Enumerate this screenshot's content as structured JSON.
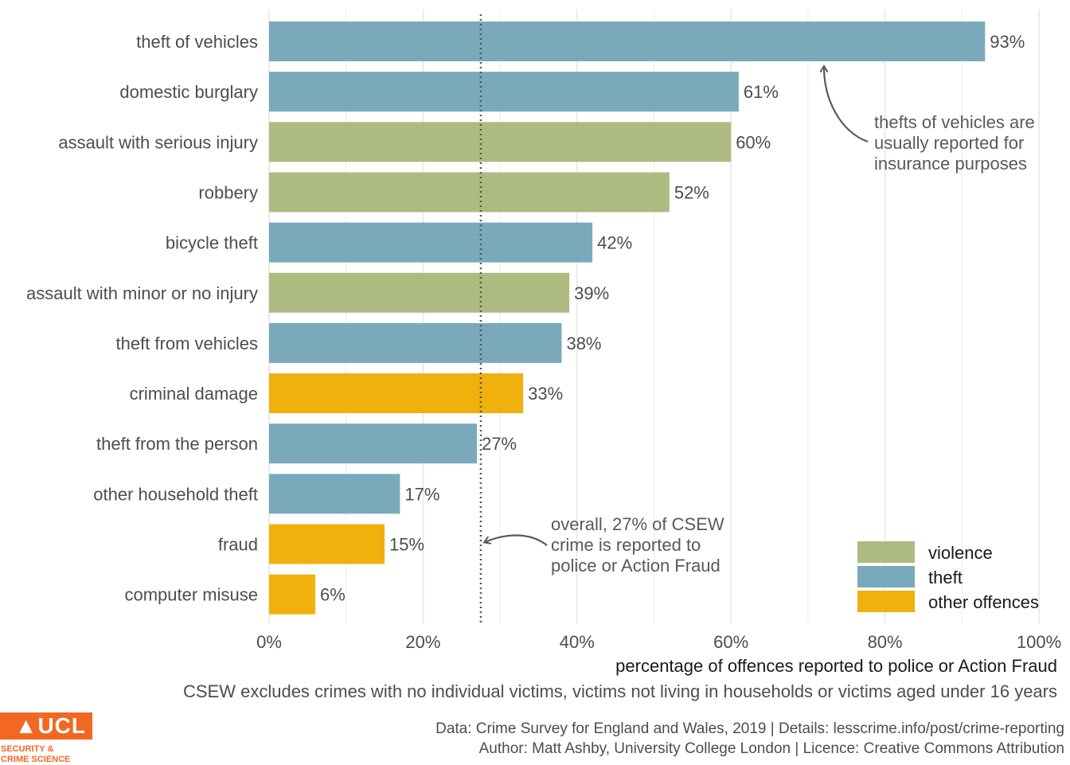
{
  "chart_data": {
    "type": "bar",
    "orientation": "horizontal",
    "categories": [
      "theft of vehicles",
      "domestic burglary",
      "assault with serious injury",
      "robbery",
      "bicycle theft",
      "assault with minor or no injury",
      "theft from vehicles",
      "criminal damage",
      "theft from the person",
      "other household theft",
      "fraud",
      "computer misuse"
    ],
    "values": [
      93,
      61,
      60,
      52,
      42,
      39,
      38,
      33,
      27,
      17,
      15,
      6
    ],
    "value_labels": [
      "93%",
      "61%",
      "60%",
      "52%",
      "42%",
      "39%",
      "38%",
      "33%",
      "27%",
      "17%",
      "15%",
      "6%"
    ],
    "groups": [
      "theft",
      "theft",
      "violence",
      "violence",
      "theft",
      "violence",
      "theft",
      "other offences",
      "theft",
      "theft",
      "other offences",
      "other offences"
    ],
    "legend": [
      {
        "name": "violence",
        "color": "#adbb81"
      },
      {
        "name": "theft",
        "color": "#7ba9bc"
      },
      {
        "name": "other offences",
        "color": "#f0b00d"
      }
    ],
    "legend_position": "bottom-right",
    "xlim": [
      0,
      100
    ],
    "x_ticks": [
      "0%",
      "20%",
      "40%",
      "60%",
      "80%",
      "100%"
    ],
    "xlabel": "percentage of offences reported to police or Action Fraud",
    "reference_line": {
      "value": 27.5,
      "style": "dotted"
    },
    "annotations": [
      {
        "lines": [
          "thefts of vehicles are",
          "usually reported for",
          "insurance purposes"
        ]
      },
      {
        "lines": [
          "overall, 27% of CSEW",
          "crime is reported to",
          "police or Action Fraud"
        ]
      }
    ],
    "grid": "vertical"
  },
  "caption": "CSEW excludes crimes with no individual victims, victims not living in households or victims aged under 16 years",
  "credits": [
    "Data: Crime Survey for England and Wales, 2019 |  Details: lesscrime.info/post/crime-reporting",
    "Author: Matt Ashby, University College London |  Licence: Creative Commons Attribution"
  ],
  "logo": {
    "title": "UCL",
    "subtitle_lines": [
      "SECURITY &",
      "CRIME SCIENCE"
    ],
    "color": "#f26722"
  },
  "colors": {
    "text": "#4d4d4d",
    "grid": "#ebebeb",
    "annotation": "#595959"
  }
}
